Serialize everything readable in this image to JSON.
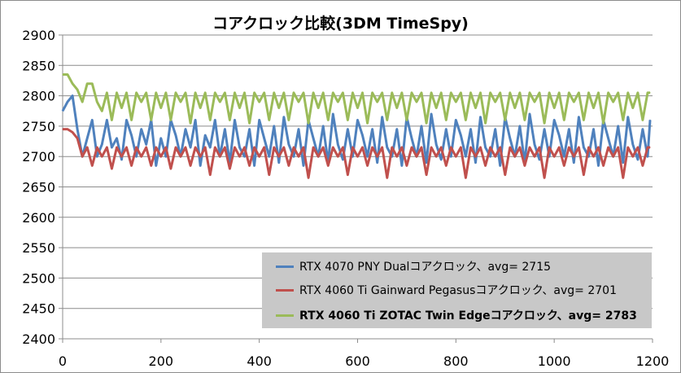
{
  "chart_data": {
    "type": "line",
    "title": "コアクロック比較(3DM TimeSpy)",
    "xlabel": "",
    "ylabel": "",
    "xlim": [
      0,
      1200
    ],
    "ylim": [
      2400,
      2900
    ],
    "x_ticks": [
      "0",
      "200",
      "400",
      "600",
      "800",
      "1000",
      "1200"
    ],
    "y_ticks": [
      "2400",
      "2450",
      "2500",
      "2550",
      "2600",
      "2650",
      "2700",
      "2750",
      "2800",
      "2850",
      "2900"
    ],
    "grid": true,
    "legend_position": "bottom-right",
    "series": [
      {
        "name": "RTX 4070 PNY Dualコアクロック、avg= 2715",
        "color": "#4f81bd",
        "avg": 2715,
        "bold": false,
        "x": [
          0,
          10,
          20,
          30,
          40,
          50,
          60,
          70,
          80,
          90,
          100,
          110,
          120,
          130,
          140,
          150,
          160,
          170,
          180,
          190,
          200,
          210,
          220,
          230,
          240,
          250,
          260,
          270,
          280,
          290,
          300,
          310,
          320,
          330,
          340,
          350,
          360,
          370,
          380,
          390,
          400,
          410,
          420,
          430,
          440,
          450,
          460,
          470,
          480,
          490,
          500,
          510,
          520,
          530,
          540,
          550,
          560,
          570,
          580,
          590,
          600,
          610,
          620,
          630,
          640,
          650,
          660,
          670,
          680,
          690,
          700,
          710,
          720,
          730,
          740,
          750,
          760,
          770,
          780,
          790,
          800,
          810,
          820,
          830,
          840,
          850,
          860,
          870,
          880,
          890,
          900,
          910,
          920,
          930,
          940,
          950,
          960,
          970,
          980,
          990,
          1000,
          1010,
          1020,
          1030,
          1040,
          1050,
          1060,
          1070,
          1080,
          1090,
          1100,
          1110,
          1120,
          1130,
          1140,
          1150,
          1160,
          1170,
          1180,
          1190,
          1195
        ],
        "y": [
          2775,
          2790,
          2800,
          2745,
          2700,
          2730,
          2760,
          2700,
          2720,
          2760,
          2715,
          2730,
          2695,
          2760,
          2735,
          2700,
          2745,
          2720,
          2760,
          2685,
          2730,
          2700,
          2760,
          2735,
          2700,
          2745,
          2715,
          2760,
          2685,
          2735,
          2715,
          2760,
          2700,
          2745,
          2690,
          2760,
          2715,
          2700,
          2745,
          2685,
          2760,
          2730,
          2700,
          2750,
          2690,
          2765,
          2720,
          2700,
          2745,
          2685,
          2760,
          2730,
          2700,
          2750,
          2690,
          2770,
          2720,
          2695,
          2745,
          2700,
          2760,
          2735,
          2700,
          2745,
          2690,
          2765,
          2715,
          2700,
          2745,
          2685,
          2765,
          2730,
          2700,
          2750,
          2690,
          2770,
          2720,
          2695,
          2745,
          2700,
          2760,
          2735,
          2700,
          2745,
          2690,
          2765,
          2715,
          2700,
          2745,
          2685,
          2765,
          2730,
          2700,
          2750,
          2690,
          2770,
          2720,
          2695,
          2745,
          2700,
          2760,
          2735,
          2700,
          2745,
          2690,
          2765,
          2715,
          2700,
          2745,
          2685,
          2760,
          2730,
          2700,
          2750,
          2690,
          2765,
          2720,
          2695,
          2745,
          2700,
          2760
        ]
      },
      {
        "name": "RTX 4060 Ti Gainward Pegasusコアクロック、avg= 2701",
        "color": "#c0504d",
        "avg": 2701,
        "bold": false,
        "x": [
          0,
          10,
          20,
          30,
          40,
          50,
          60,
          70,
          80,
          90,
          100,
          110,
          120,
          130,
          140,
          150,
          160,
          170,
          180,
          190,
          200,
          210,
          220,
          230,
          240,
          250,
          260,
          270,
          280,
          290,
          300,
          310,
          320,
          330,
          340,
          350,
          360,
          370,
          380,
          390,
          400,
          410,
          420,
          430,
          440,
          450,
          460,
          470,
          480,
          490,
          500,
          510,
          520,
          530,
          540,
          550,
          560,
          570,
          580,
          590,
          600,
          610,
          620,
          630,
          640,
          650,
          660,
          670,
          680,
          690,
          700,
          710,
          720,
          730,
          740,
          750,
          760,
          770,
          780,
          790,
          800,
          810,
          820,
          830,
          840,
          850,
          860,
          870,
          880,
          890,
          900,
          910,
          920,
          930,
          940,
          950,
          960,
          970,
          980,
          990,
          1000,
          1010,
          1020,
          1030,
          1040,
          1050,
          1060,
          1070,
          1080,
          1090,
          1100,
          1110,
          1120,
          1130,
          1140,
          1150,
          1160,
          1170,
          1180,
          1190,
          1195
        ],
        "y": [
          2745,
          2745,
          2740,
          2730,
          2700,
          2715,
          2685,
          2715,
          2700,
          2715,
          2680,
          2715,
          2700,
          2715,
          2685,
          2715,
          2700,
          2715,
          2685,
          2715,
          2700,
          2715,
          2680,
          2715,
          2700,
          2715,
          2685,
          2715,
          2700,
          2715,
          2670,
          2715,
          2700,
          2715,
          2680,
          2715,
          2700,
          2715,
          2685,
          2715,
          2700,
          2715,
          2670,
          2715,
          2700,
          2715,
          2685,
          2715,
          2700,
          2715,
          2665,
          2715,
          2700,
          2715,
          2685,
          2715,
          2700,
          2715,
          2670,
          2715,
          2700,
          2715,
          2685,
          2715,
          2700,
          2715,
          2665,
          2715,
          2700,
          2715,
          2685,
          2715,
          2700,
          2715,
          2670,
          2715,
          2700,
          2715,
          2685,
          2715,
          2700,
          2715,
          2665,
          2715,
          2700,
          2715,
          2685,
          2715,
          2700,
          2715,
          2670,
          2715,
          2700,
          2715,
          2685,
          2715,
          2700,
          2715,
          2665,
          2715,
          2700,
          2715,
          2685,
          2715,
          2700,
          2715,
          2670,
          2715,
          2700,
          2715,
          2685,
          2715,
          2700,
          2715,
          2665,
          2715,
          2700,
          2715,
          2685,
          2715,
          2715
        ]
      },
      {
        "name": "RTX 4060 Ti ZOTAC Twin Edgeコアクロック、avg= 2783",
        "color": "#9bbb59",
        "avg": 2783,
        "bold": true,
        "x": [
          0,
          10,
          20,
          30,
          40,
          50,
          60,
          70,
          80,
          90,
          100,
          110,
          120,
          130,
          140,
          150,
          160,
          170,
          180,
          190,
          200,
          210,
          220,
          230,
          240,
          250,
          260,
          270,
          280,
          290,
          300,
          310,
          320,
          330,
          340,
          350,
          360,
          370,
          380,
          390,
          400,
          410,
          420,
          430,
          440,
          450,
          460,
          470,
          480,
          490,
          500,
          510,
          520,
          530,
          540,
          550,
          560,
          570,
          580,
          590,
          600,
          610,
          620,
          630,
          640,
          650,
          660,
          670,
          680,
          690,
          700,
          710,
          720,
          730,
          740,
          750,
          760,
          770,
          780,
          790,
          800,
          810,
          820,
          830,
          840,
          850,
          860,
          870,
          880,
          890,
          900,
          910,
          920,
          930,
          940,
          950,
          960,
          970,
          980,
          990,
          1000,
          1010,
          1020,
          1030,
          1040,
          1050,
          1060,
          1070,
          1080,
          1090,
          1100,
          1110,
          1120,
          1130,
          1140,
          1150,
          1160,
          1170,
          1180,
          1190,
          1195
        ],
        "y": [
          2835,
          2835,
          2820,
          2810,
          2790,
          2820,
          2820,
          2790,
          2775,
          2805,
          2760,
          2805,
          2780,
          2805,
          2760,
          2805,
          2790,
          2805,
          2760,
          2805,
          2780,
          2805,
          2760,
          2805,
          2790,
          2805,
          2755,
          2805,
          2780,
          2805,
          2760,
          2805,
          2790,
          2805,
          2760,
          2805,
          2780,
          2805,
          2755,
          2805,
          2790,
          2805,
          2760,
          2805,
          2780,
          2805,
          2760,
          2805,
          2790,
          2805,
          2755,
          2805,
          2780,
          2805,
          2760,
          2805,
          2790,
          2805,
          2760,
          2805,
          2780,
          2805,
          2755,
          2805,
          2790,
          2805,
          2760,
          2805,
          2780,
          2805,
          2760,
          2805,
          2790,
          2805,
          2755,
          2805,
          2780,
          2805,
          2760,
          2805,
          2790,
          2805,
          2760,
          2805,
          2780,
          2805,
          2755,
          2805,
          2790,
          2805,
          2760,
          2805,
          2780,
          2805,
          2760,
          2805,
          2790,
          2805,
          2755,
          2805,
          2780,
          2805,
          2760,
          2805,
          2790,
          2805,
          2760,
          2805,
          2780,
          2805,
          2755,
          2805,
          2790,
          2805,
          2760,
          2805,
          2780,
          2805,
          2760,
          2805,
          2805
        ]
      }
    ]
  }
}
